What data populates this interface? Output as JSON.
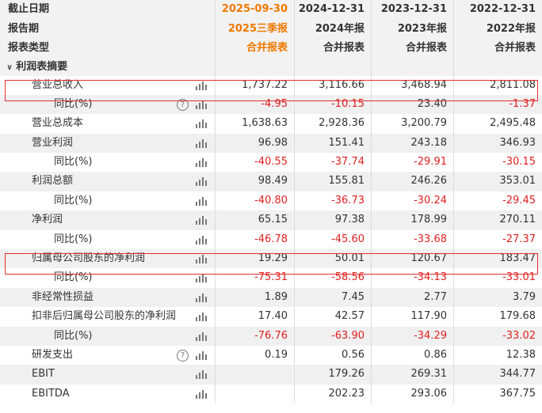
{
  "header": {
    "rows": [
      {
        "label": "截止日期",
        "cols": [
          "2025-09-30",
          "2024-12-31",
          "2023-12-31",
          "2022-12-31"
        ]
      },
      {
        "label": "报告期",
        "cols": [
          "2025三季报",
          "2024年报",
          "2023年报",
          "2022年报"
        ]
      },
      {
        "label": "报表类型",
        "cols": [
          "合并报表",
          "合并报表",
          "合并报表",
          "合并报表"
        ]
      }
    ]
  },
  "section": {
    "label": "利润表摘要",
    "chevron": "chevron-down-icon"
  },
  "rows": [
    {
      "label": "营业总收入",
      "sub": false,
      "help": false,
      "vals": [
        "1,737.22",
        "3,116.66",
        "3,468.94",
        "2,811.08"
      ]
    },
    {
      "label": "同比(%)",
      "sub": true,
      "help": true,
      "vals": [
        "-4.95",
        "-10.15",
        "23.40",
        "-1.37"
      ]
    },
    {
      "label": "营业总成本",
      "sub": false,
      "help": false,
      "vals": [
        "1,638.63",
        "2,928.36",
        "3,200.79",
        "2,495.48"
      ]
    },
    {
      "label": "营业利润",
      "sub": false,
      "help": false,
      "vals": [
        "96.98",
        "151.41",
        "243.18",
        "346.93"
      ]
    },
    {
      "label": "同比(%)",
      "sub": true,
      "help": false,
      "vals": [
        "-40.55",
        "-37.74",
        "-29.91",
        "-30.15"
      ]
    },
    {
      "label": "利润总额",
      "sub": false,
      "help": false,
      "vals": [
        "98.49",
        "155.81",
        "246.26",
        "353.01"
      ]
    },
    {
      "label": "同比(%)",
      "sub": true,
      "help": false,
      "vals": [
        "-40.80",
        "-36.73",
        "-30.24",
        "-29.45"
      ]
    },
    {
      "label": "净利润",
      "sub": false,
      "help": false,
      "vals": [
        "65.15",
        "97.38",
        "178.99",
        "270.11"
      ]
    },
    {
      "label": "同比(%)",
      "sub": true,
      "help": false,
      "vals": [
        "-46.78",
        "-45.60",
        "-33.68",
        "-27.37"
      ]
    },
    {
      "label": "归属母公司股东的净利润",
      "sub": false,
      "help": false,
      "vals": [
        "19.29",
        "50.01",
        "120.67",
        "183.47"
      ]
    },
    {
      "label": "同比(%)",
      "sub": true,
      "help": false,
      "vals": [
        "-75.31",
        "-58.56",
        "-34.13",
        "-33.01"
      ]
    },
    {
      "label": "非经常性损益",
      "sub": false,
      "help": false,
      "vals": [
        "1.89",
        "7.45",
        "2.77",
        "3.79"
      ]
    },
    {
      "label": "扣非后归属母公司股东的净利润",
      "sub": false,
      "help": false,
      "vals": [
        "17.40",
        "42.57",
        "117.90",
        "179.68"
      ]
    },
    {
      "label": "同比(%)",
      "sub": true,
      "help": false,
      "vals": [
        "-76.76",
        "-63.90",
        "-34.29",
        "-33.02"
      ]
    },
    {
      "label": "研发支出",
      "sub": false,
      "help": true,
      "vals": [
        "0.19",
        "0.56",
        "0.86",
        "12.38"
      ]
    },
    {
      "label": "EBIT",
      "sub": false,
      "help": false,
      "vals": [
        "",
        "179.26",
        "269.31",
        "344.77"
      ]
    },
    {
      "label": "EBITDA",
      "sub": false,
      "help": false,
      "vals": [
        "",
        "202.23",
        "293.06",
        "367.75"
      ]
    }
  ],
  "colors": {
    "accent": "#f07800",
    "negative": "#e02020",
    "highlight": "#e23030"
  },
  "help_icon_glyph": "?"
}
